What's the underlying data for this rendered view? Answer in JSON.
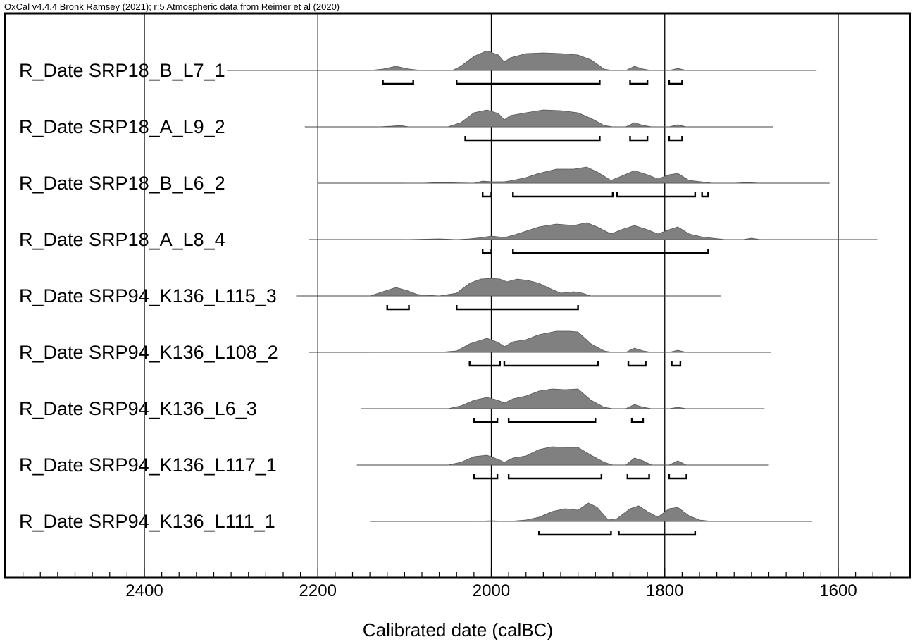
{
  "header": "OxCal v4.4.4 Bronk Ramsey (2021); r:5 Atmospheric data from Reimer et al (2020)",
  "chart_data": {
    "type": "area",
    "xlabel": "Calibrated date (calBC)",
    "x_reversed": true,
    "xlim": [
      2560,
      1520
    ],
    "xticks": [
      2400,
      2200,
      2000,
      1800,
      1600
    ],
    "minor_tick_step": 20,
    "grid": true,
    "series": [
      {
        "name": "R_Date SRP18_B_L7_1",
        "line": [
          2305,
          1625
        ],
        "density": [
          [
            2140,
            0
          ],
          [
            2125,
            2
          ],
          [
            2110,
            6
          ],
          [
            2095,
            2
          ],
          [
            2080,
            0
          ],
          [
            2045,
            0
          ],
          [
            2035,
            6
          ],
          [
            2020,
            20
          ],
          [
            2005,
            28
          ],
          [
            1992,
            22
          ],
          [
            1985,
            12
          ],
          [
            1978,
            18
          ],
          [
            1960,
            24
          ],
          [
            1940,
            25
          ],
          [
            1920,
            24
          ],
          [
            1900,
            22
          ],
          [
            1885,
            15
          ],
          [
            1870,
            2
          ],
          [
            1860,
            0
          ],
          [
            1845,
            0
          ],
          [
            1835,
            6
          ],
          [
            1825,
            2
          ],
          [
            1815,
            0
          ],
          [
            1795,
            0
          ],
          [
            1785,
            3
          ],
          [
            1775,
            0
          ]
        ],
        "ranges": [
          [
            2125,
            2090
          ],
          [
            2040,
            1875
          ],
          [
            1840,
            1820
          ],
          [
            1795,
            1780
          ]
        ]
      },
      {
        "name": "R_Date SRP18_A_L9_2",
        "line": [
          2215,
          1675
        ],
        "density": [
          [
            2130,
            0
          ],
          [
            2115,
            1
          ],
          [
            2105,
            2
          ],
          [
            2095,
            0
          ],
          [
            2050,
            0
          ],
          [
            2035,
            6
          ],
          [
            2020,
            20
          ],
          [
            2005,
            24
          ],
          [
            1992,
            19
          ],
          [
            1985,
            10
          ],
          [
            1978,
            16
          ],
          [
            1960,
            20
          ],
          [
            1940,
            24
          ],
          [
            1920,
            23
          ],
          [
            1900,
            20
          ],
          [
            1885,
            12
          ],
          [
            1870,
            2
          ],
          [
            1860,
            0
          ],
          [
            1845,
            0
          ],
          [
            1835,
            6
          ],
          [
            1825,
            2
          ],
          [
            1815,
            0
          ],
          [
            1795,
            0
          ],
          [
            1785,
            3
          ],
          [
            1775,
            0
          ]
        ],
        "ranges": [
          [
            2030,
            1875
          ],
          [
            1840,
            1820
          ],
          [
            1795,
            1780
          ]
        ]
      },
      {
        "name": "R_Date SRP18_B_L6_2",
        "line": [
          2200,
          1610
        ],
        "density": [
          [
            2100,
            0
          ],
          [
            2080,
            0
          ],
          [
            2060,
            1
          ],
          [
            2020,
            0
          ],
          [
            2010,
            3
          ],
          [
            2000,
            2
          ],
          [
            1985,
            2
          ],
          [
            1975,
            4
          ],
          [
            1960,
            8
          ],
          [
            1945,
            14
          ],
          [
            1925,
            20
          ],
          [
            1905,
            20
          ],
          [
            1890,
            23
          ],
          [
            1878,
            16
          ],
          [
            1862,
            4
          ],
          [
            1850,
            10
          ],
          [
            1835,
            18
          ],
          [
            1820,
            12
          ],
          [
            1808,
            6
          ],
          [
            1795,
            12
          ],
          [
            1785,
            14
          ],
          [
            1772,
            4
          ],
          [
            1758,
            2
          ],
          [
            1745,
            0
          ],
          [
            1720,
            0
          ],
          [
            1705,
            1
          ],
          [
            1690,
            0
          ]
        ],
        "ranges": [
          [
            2010,
            2000
          ],
          [
            1975,
            1860
          ],
          [
            1855,
            1765
          ],
          [
            1757,
            1750
          ]
        ]
      },
      {
        "name": "R_Date SRP18_A_L8_4",
        "line": [
          2210,
          1555
        ],
        "density": [
          [
            2100,
            0
          ],
          [
            2060,
            1
          ],
          [
            2040,
            0
          ],
          [
            2025,
            1
          ],
          [
            2010,
            3
          ],
          [
            2000,
            5
          ],
          [
            1985,
            3
          ],
          [
            1975,
            6
          ],
          [
            1960,
            12
          ],
          [
            1945,
            18
          ],
          [
            1925,
            22
          ],
          [
            1905,
            20
          ],
          [
            1890,
            24
          ],
          [
            1878,
            18
          ],
          [
            1862,
            8
          ],
          [
            1850,
            14
          ],
          [
            1835,
            20
          ],
          [
            1820,
            14
          ],
          [
            1808,
            8
          ],
          [
            1795,
            14
          ],
          [
            1785,
            18
          ],
          [
            1772,
            8
          ],
          [
            1758,
            4
          ],
          [
            1745,
            2
          ],
          [
            1730,
            0
          ],
          [
            1710,
            0
          ],
          [
            1700,
            2
          ],
          [
            1690,
            0
          ]
        ],
        "ranges": [
          [
            2010,
            2000
          ],
          [
            1975,
            1750
          ]
        ]
      },
      {
        "name": "R_Date SRP94_K136_L115_3",
        "line": [
          2225,
          1735
        ],
        "density": [
          [
            2140,
            0
          ],
          [
            2125,
            6
          ],
          [
            2110,
            12
          ],
          [
            2098,
            8
          ],
          [
            2085,
            2
          ],
          [
            2060,
            0
          ],
          [
            2040,
            4
          ],
          [
            2025,
            18
          ],
          [
            2012,
            24
          ],
          [
            2000,
            25
          ],
          [
            1990,
            24
          ],
          [
            1982,
            20
          ],
          [
            1970,
            24
          ],
          [
            1958,
            22
          ],
          [
            1945,
            18
          ],
          [
            1935,
            12
          ],
          [
            1920,
            4
          ],
          [
            1905,
            6
          ],
          [
            1895,
            4
          ],
          [
            1885,
            0
          ]
        ],
        "ranges": [
          [
            2120,
            2095
          ],
          [
            2040,
            1900
          ]
        ]
      },
      {
        "name": "R_Date SRP94_K136_L108_2",
        "line": [
          2210,
          1678
        ],
        "density": [
          [
            2140,
            0
          ],
          [
            2080,
            0
          ],
          [
            2060,
            0
          ],
          [
            2040,
            2
          ],
          [
            2025,
            12
          ],
          [
            2005,
            20
          ],
          [
            1992,
            14
          ],
          [
            1985,
            8
          ],
          [
            1975,
            15
          ],
          [
            1960,
            18
          ],
          [
            1945,
            25
          ],
          [
            1925,
            30
          ],
          [
            1910,
            30
          ],
          [
            1900,
            29
          ],
          [
            1885,
            12
          ],
          [
            1870,
            2
          ],
          [
            1860,
            0
          ],
          [
            1845,
            0
          ],
          [
            1835,
            6
          ],
          [
            1825,
            2
          ],
          [
            1815,
            0
          ],
          [
            1795,
            0
          ],
          [
            1785,
            3
          ],
          [
            1775,
            0
          ]
        ],
        "ranges": [
          [
            2025,
            1990
          ],
          [
            1985,
            1877
          ],
          [
            1842,
            1822
          ],
          [
            1792,
            1782
          ]
        ]
      },
      {
        "name": "R_Date SRP94_K136_L6_3",
        "line": [
          2150,
          1685
        ],
        "density": [
          [
            2050,
            0
          ],
          [
            2035,
            4
          ],
          [
            2020,
            12
          ],
          [
            2005,
            16
          ],
          [
            1992,
            12
          ],
          [
            1985,
            8
          ],
          [
            1975,
            14
          ],
          [
            1960,
            18
          ],
          [
            1945,
            25
          ],
          [
            1930,
            28
          ],
          [
            1915,
            27
          ],
          [
            1900,
            28
          ],
          [
            1885,
            12
          ],
          [
            1870,
            2
          ],
          [
            1860,
            0
          ],
          [
            1845,
            0
          ],
          [
            1835,
            6
          ],
          [
            1825,
            2
          ],
          [
            1815,
            0
          ],
          [
            1795,
            0
          ],
          [
            1785,
            2
          ],
          [
            1775,
            0
          ]
        ],
        "ranges": [
          [
            2020,
            1993
          ],
          [
            1980,
            1880
          ],
          [
            1838,
            1825
          ]
        ]
      },
      {
        "name": "R_Date SRP94_K136_L117_1",
        "line": [
          2155,
          1680
        ],
        "density": [
          [
            2050,
            0
          ],
          [
            2035,
            4
          ],
          [
            2020,
            12
          ],
          [
            2005,
            14
          ],
          [
            1992,
            8
          ],
          [
            1985,
            4
          ],
          [
            1975,
            10
          ],
          [
            1960,
            13
          ],
          [
            1945,
            22
          ],
          [
            1930,
            26
          ],
          [
            1915,
            25
          ],
          [
            1900,
            25
          ],
          [
            1885,
            14
          ],
          [
            1870,
            4
          ],
          [
            1860,
            0
          ],
          [
            1845,
            0
          ],
          [
            1835,
            10
          ],
          [
            1825,
            6
          ],
          [
            1815,
            0
          ],
          [
            1795,
            0
          ],
          [
            1785,
            6
          ],
          [
            1775,
            0
          ]
        ],
        "ranges": [
          [
            2020,
            1993
          ],
          [
            1980,
            1873
          ],
          [
            1843,
            1818
          ],
          [
            1795,
            1775
          ]
        ]
      },
      {
        "name": "R_Date SRP94_K136_L111_1",
        "line": [
          2140,
          1630
        ],
        "density": [
          [
            2020,
            0
          ],
          [
            2000,
            1
          ],
          [
            1980,
            0
          ],
          [
            1960,
            2
          ],
          [
            1945,
            6
          ],
          [
            1930,
            14
          ],
          [
            1915,
            18
          ],
          [
            1900,
            16
          ],
          [
            1888,
            26
          ],
          [
            1878,
            20
          ],
          [
            1865,
            2
          ],
          [
            1855,
            4
          ],
          [
            1840,
            18
          ],
          [
            1830,
            22
          ],
          [
            1820,
            14
          ],
          [
            1808,
            6
          ],
          [
            1795,
            18
          ],
          [
            1785,
            20
          ],
          [
            1772,
            8
          ],
          [
            1760,
            2
          ],
          [
            1745,
            0
          ]
        ],
        "ranges": [
          [
            1945,
            1862
          ],
          [
            1853,
            1765
          ]
        ]
      }
    ]
  }
}
